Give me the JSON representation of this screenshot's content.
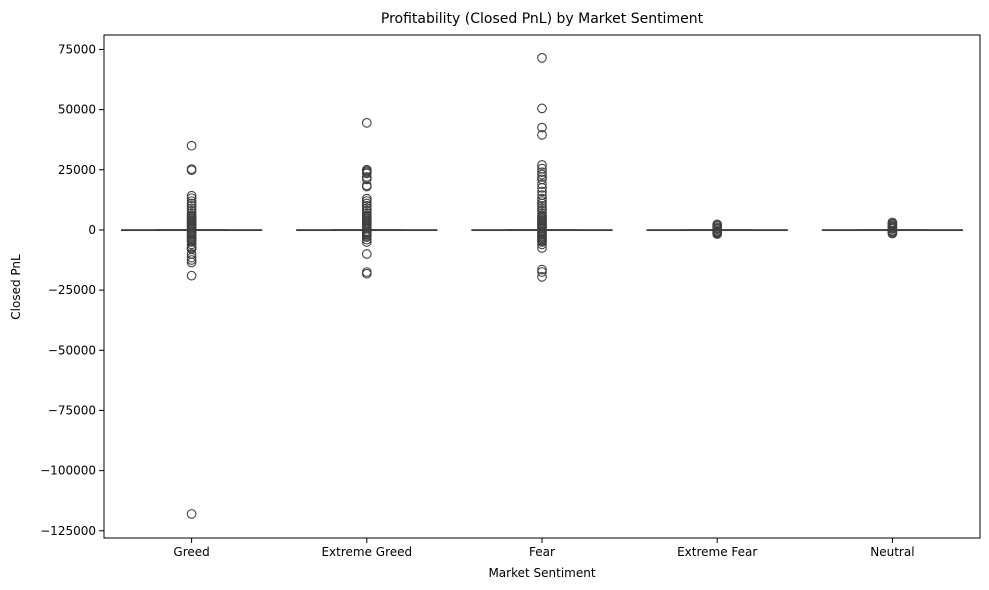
{
  "chart_data": {
    "type": "box",
    "title": "Profitability (Closed PnL) by Market Sentiment",
    "xlabel": "Market Sentiment",
    "ylabel": "Closed PnL",
    "ylim": [
      -128000,
      81000
    ],
    "yticks": [
      75000,
      50000,
      25000,
      0,
      -25000,
      -50000,
      -75000,
      -100000,
      -125000
    ],
    "ytick_labels": [
      "75000",
      "50000",
      "25000",
      "0",
      "−25000",
      "−50000",
      "−75000",
      "−100000",
      "−125000"
    ],
    "categories": [
      "Greed",
      "Extreme Greed",
      "Fear",
      "Extreme Fear",
      "Neutral"
    ],
    "box_color": "#3f3f3f",
    "series": [
      {
        "category": "Greed",
        "q1": 0,
        "median": 0,
        "q3": 5,
        "whisker_low": -15,
        "whisker_high": 20,
        "outliers": [
          35000,
          25300,
          24800,
          14200,
          13200,
          12000,
          11000,
          10000,
          9000,
          8000,
          7000,
          6000,
          5500,
          5000,
          4500,
          4000,
          3500,
          3000,
          2500,
          2000,
          1500,
          1000,
          500,
          -500,
          -1000,
          -1500,
          -2000,
          -2500,
          -3000,
          -3500,
          -4000,
          -4500,
          -5000,
          -6000,
          -7000,
          -7500,
          -8000,
          -10000,
          -11500,
          -12500,
          -13500,
          -19000,
          -118000
        ]
      },
      {
        "category": "Extreme Greed",
        "q1": 0,
        "median": 0,
        "q3": 5,
        "whisker_low": -15,
        "whisker_high": 20,
        "outliers": [
          44500,
          25000,
          24500,
          24000,
          23500,
          22000,
          21000,
          18500,
          18000,
          13000,
          12000,
          11000,
          10000,
          9000,
          8000,
          7000,
          6000,
          5500,
          5000,
          4500,
          4000,
          3500,
          3000,
          2500,
          2000,
          1500,
          1000,
          500,
          -500,
          -1000,
          -1500,
          -2000,
          -2500,
          -3000,
          -4000,
          -5000,
          -10000,
          -17500,
          -18200
        ]
      },
      {
        "category": "Fear",
        "q1": 0,
        "median": 0,
        "q3": 5,
        "whisker_low": -15,
        "whisker_high": 20,
        "outliers": [
          71500,
          50500,
          42500,
          39500,
          27000,
          25500,
          24000,
          23000,
          22000,
          21000,
          19000,
          17500,
          16000,
          14500,
          13000,
          12000,
          11000,
          10000,
          9000,
          8000,
          7000,
          6000,
          5500,
          5000,
          4500,
          4000,
          3500,
          3000,
          2500,
          2000,
          1500,
          1000,
          500,
          -500,
          -1000,
          -1500,
          -2000,
          -2500,
          -3000,
          -3500,
          -4000,
          -4500,
          -5000,
          -6000,
          -7500,
          -16500,
          -17500,
          -19500
        ]
      },
      {
        "category": "Extreme Fear",
        "q1": 0,
        "median": 0,
        "q3": 2,
        "whisker_low": -5,
        "whisker_high": 8,
        "outliers": [
          2300,
          1800,
          1200,
          700,
          300,
          -300,
          -700,
          -1000,
          -1400,
          -1700
        ]
      },
      {
        "category": "Neutral",
        "q1": 0,
        "median": 0,
        "q3": 2,
        "whisker_low": -5,
        "whisker_high": 8,
        "outliers": [
          3100,
          2600,
          2100,
          1600,
          1200,
          800,
          400,
          -300,
          -700,
          -1100,
          -1500
        ]
      }
    ]
  }
}
